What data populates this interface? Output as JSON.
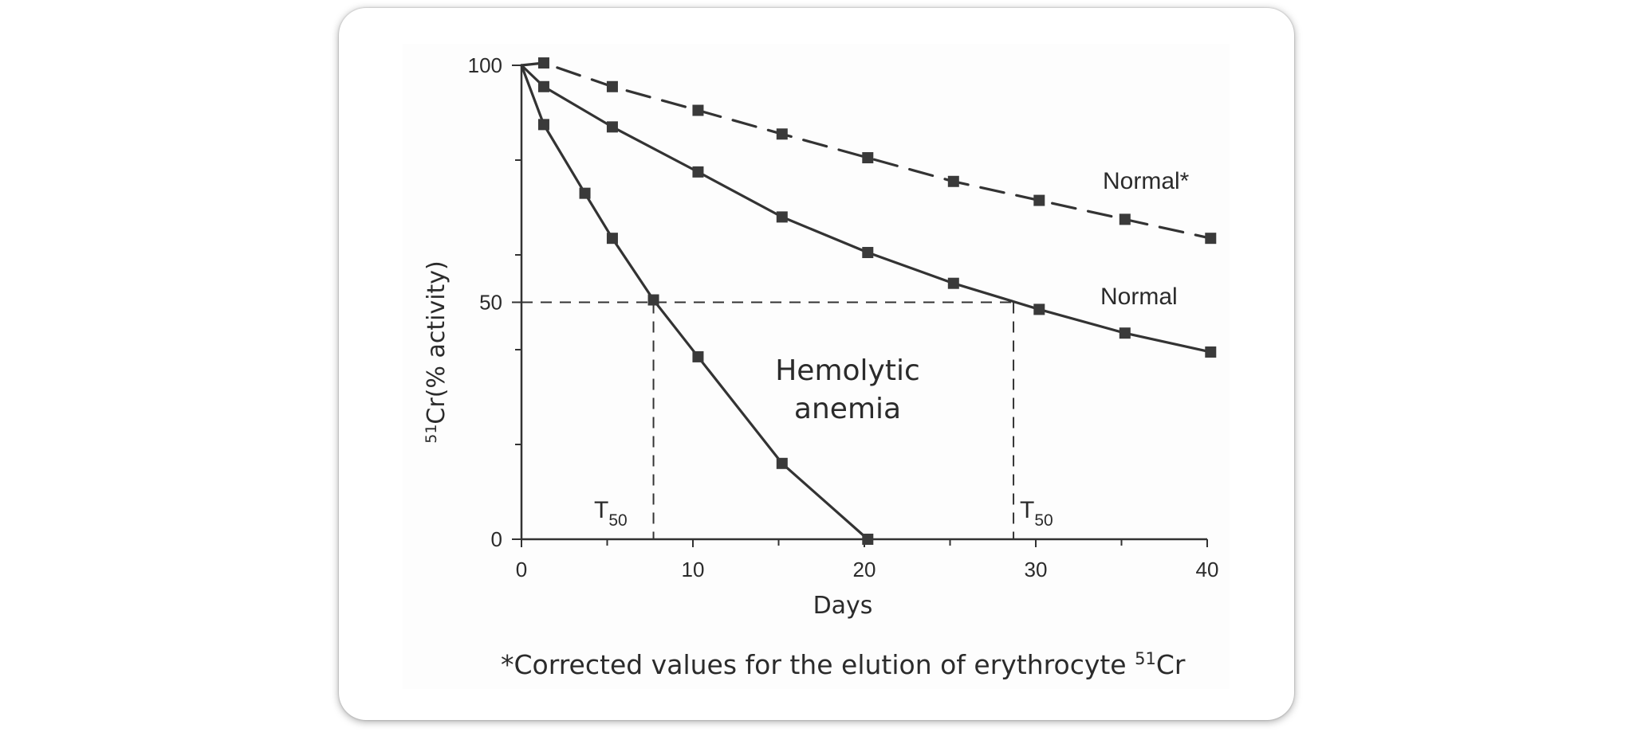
{
  "chart_data": {
    "type": "line",
    "xlabel": "Days",
    "ylabel_prefix": "51",
    "ylabel_main": "Cr(% activity)",
    "xlim": [
      0,
      40
    ],
    "ylim": [
      0,
      100
    ],
    "x_ticks": [
      0,
      10,
      20,
      30,
      40
    ],
    "y_ticks_labeled": [
      0,
      50,
      100
    ],
    "y_ticks_minor": [
      20,
      40,
      60,
      80
    ],
    "x_ticks_minor": [
      5,
      15,
      25,
      35
    ],
    "grid": false,
    "series": [
      {
        "name": "Normal*",
        "style": "dashed",
        "x": [
          0,
          1.3,
          5.3,
          10.3,
          15.2,
          20.2,
          25.2,
          30.2,
          35.2,
          40.2
        ],
        "y": [
          100,
          100.5,
          95.5,
          90.5,
          85.5,
          80.5,
          75.5,
          71.5,
          67.5,
          63.5
        ]
      },
      {
        "name": "Normal",
        "style": "solid",
        "x": [
          0,
          1.3,
          5.3,
          10.3,
          15.2,
          20.2,
          25.2,
          30.2,
          35.2,
          40.2
        ],
        "y": [
          100,
          95.5,
          87,
          77.5,
          68,
          60.5,
          54,
          48.5,
          43.5,
          39.5
        ]
      },
      {
        "name": "Hemolytic anemia",
        "style": "solid",
        "x": [
          0,
          1.3,
          3.7,
          5.3,
          7.7,
          10.3,
          15.2,
          20.2
        ],
        "y": [
          100,
          87.5,
          73,
          63.5,
          50.5,
          38.5,
          16,
          0
        ]
      }
    ],
    "annotations": {
      "t50_label": "T",
      "t50_sub": "50",
      "t50_hemolytic_day": 7.7,
      "t50_normal_day": 28.7,
      "half_level": 50,
      "hemolytic_label_line1": "Hemolytic",
      "hemolytic_label_line2": "anemia"
    },
    "footnote_main": "*Corrected values for the elution of erythrocyte ",
    "footnote_sup": "51",
    "footnote_end": "Cr",
    "colors": {
      "line": "#333333",
      "marker": "#3a3a3a",
      "text": "#2b2b2b"
    }
  }
}
